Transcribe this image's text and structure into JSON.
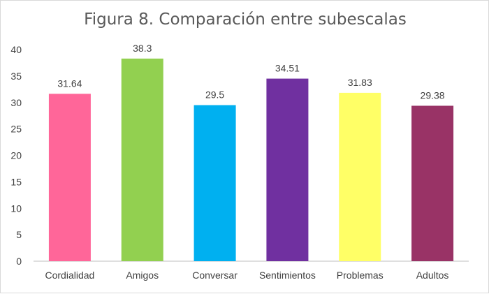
{
  "chart_data": {
    "type": "bar",
    "title": "Figura 8. Comparación entre subescalas",
    "categories": [
      "Cordialidad",
      "Amigos",
      "Conversar",
      "Sentimientos",
      "Problemas",
      "Adultos"
    ],
    "values": [
      31.64,
      38.3,
      29.5,
      34.51,
      31.83,
      29.38
    ],
    "data_labels": [
      "31.64",
      "38.3",
      "29.5",
      "34.51",
      "31.83",
      "29.38"
    ],
    "colors": [
      "#ff6699",
      "#92d050",
      "#00b0f0",
      "#7030a0",
      "#ffff66",
      "#993366"
    ],
    "ylim": [
      0,
      40
    ],
    "yticks": [
      "0",
      "5",
      "10",
      "15",
      "20",
      "25",
      "30",
      "35",
      "40"
    ],
    "grid": false,
    "legend": "none"
  }
}
